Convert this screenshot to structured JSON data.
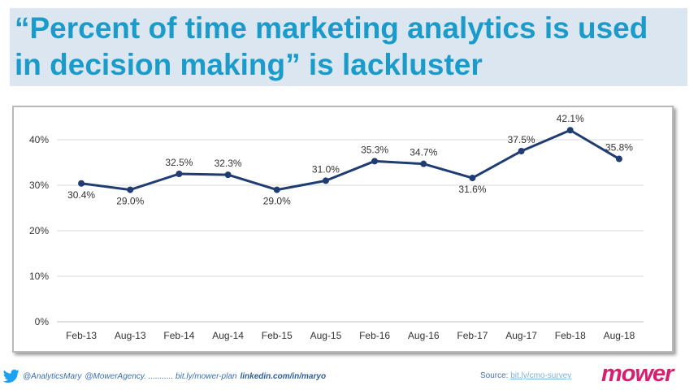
{
  "slide": {
    "title": "“Percent of time marketing analytics is used in decision making” is lackluster"
  },
  "chart_data": {
    "type": "line",
    "categories": [
      "Feb-13",
      "Aug-13",
      "Feb-14",
      "Aug-14",
      "Feb-15",
      "Aug-15",
      "Feb-16",
      "Aug-16",
      "Feb-17",
      "Aug-17",
      "Feb-18",
      "Aug-18"
    ],
    "series": [
      {
        "values": [
          30.4,
          29.0,
          32.5,
          32.3,
          29.0,
          31.0,
          35.3,
          34.7,
          31.6,
          37.5,
          42.1,
          35.8
        ]
      }
    ],
    "data_labels": [
      "30.4%",
      "29.0%",
      "32.5%",
      "32.3%",
      "29.0%",
      "31.0%",
      "35.3%",
      "34.7%",
      "31.6%",
      "37.5%",
      "42.1%",
      "35.8%"
    ],
    "y_ticks": [
      0,
      10,
      20,
      30,
      40
    ],
    "y_tick_labels": [
      "0%",
      "10%",
      "20%",
      "30%",
      "40%"
    ],
    "ylim": [
      0,
      45
    ],
    "grid": true,
    "title": "",
    "xlabel": "",
    "ylabel": "",
    "colors": {
      "line": "#1f3c73",
      "marker": "#1f3c73",
      "grid": "#d9d9d9"
    }
  },
  "footer": {
    "twitter_icon": "twitter-bird-icon",
    "handle": "@AnalyticsMary",
    "agency": "@MowerAgency. ........... bit.ly/mower-plan",
    "linkedin": "linkedin.com/in/maryo",
    "source_label": "Source:",
    "source_link": "bit.ly/cmo-survey",
    "logo": "mower"
  }
}
